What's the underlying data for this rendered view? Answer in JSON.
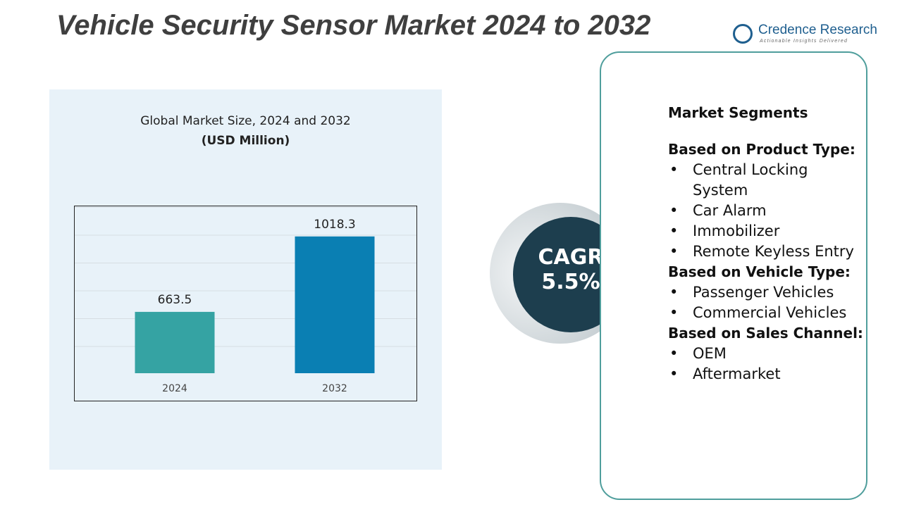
{
  "title": "Vehicle Security Sensor Market 2024 to 2032",
  "logo": {
    "name": "Credence Research",
    "tagline": "Actionable Insights Delivered"
  },
  "chart_data": {
    "type": "bar",
    "title": "Global Market Size, 2024 and 2032",
    "subtitle": "(USD Million)",
    "categories": [
      "2024",
      "2032"
    ],
    "values": [
      663.5,
      1018.3
    ],
    "colors": [
      "#35a3a3",
      "#0a7fb3"
    ],
    "ylim": [
      375,
      1150
    ]
  },
  "cagr": {
    "label": "CAGR",
    "value": "5.5%"
  },
  "segments": {
    "heading": "Market Segments",
    "groups": [
      {
        "title": "Based on Product Type:",
        "items": [
          "Central Locking System",
          "Car Alarm",
          "Immobilizer",
          "Remote Keyless Entry"
        ]
      },
      {
        "title": "Based on Vehicle Type:",
        "items": [
          "Passenger Vehicles",
          "Commercial Vehicles"
        ]
      },
      {
        "title": "Based on Sales Channel:",
        "items": [
          "OEM",
          "Aftermarket"
        ]
      }
    ]
  }
}
